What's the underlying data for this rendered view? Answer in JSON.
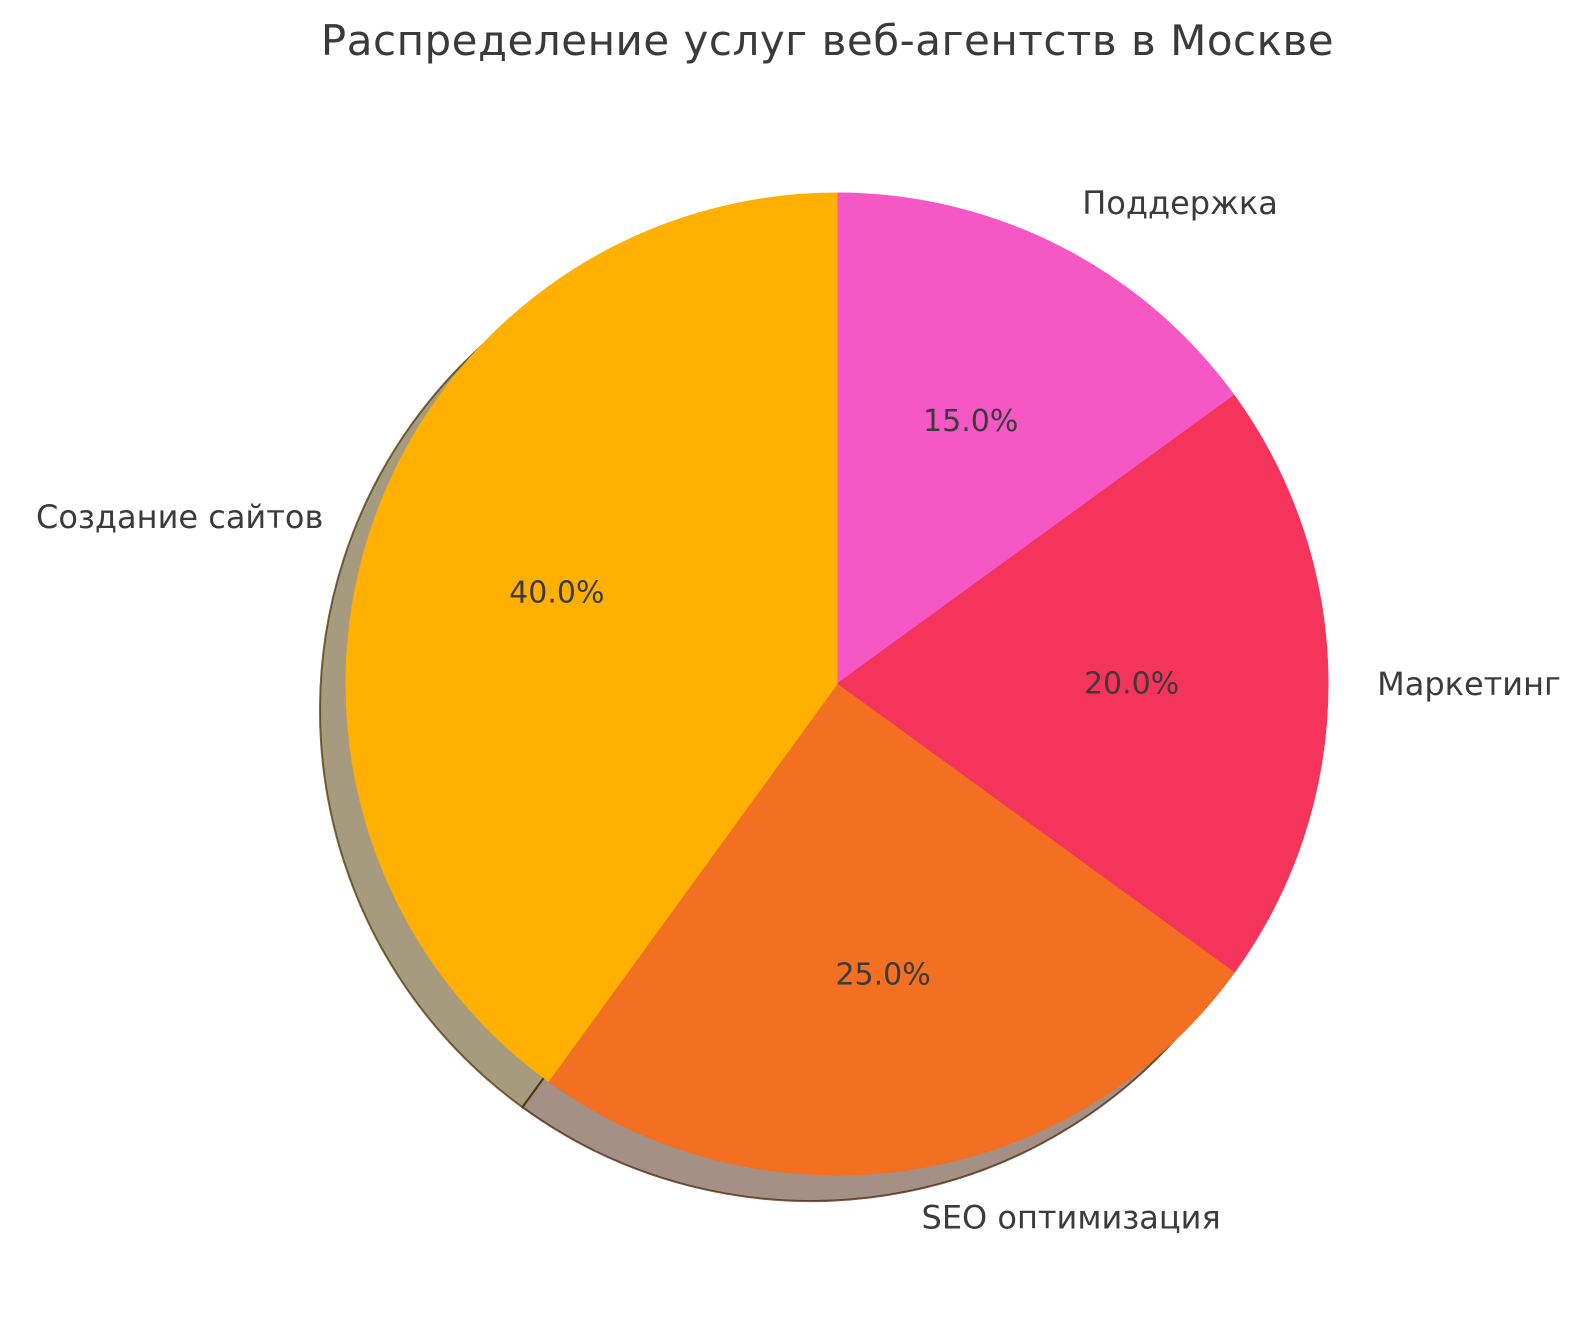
{
  "chart_data": {
    "type": "pie",
    "title": "Распределение услуг веб-агентств в Москве",
    "start_angle_deg": 90,
    "direction": "clockwise",
    "shadow": true,
    "legend": "none",
    "background": "#ffffff",
    "text_color": "#3b3b3b",
    "slices": [
      {
        "id": "support",
        "label": "Поддержка",
        "value": 15.0,
        "pct_label": "15.0%",
        "color": "#F558C5"
      },
      {
        "id": "marketing",
        "label": "Маркетинг",
        "value": 20.0,
        "pct_label": "20.0%",
        "color": "#F4345B"
      },
      {
        "id": "seo-optimization",
        "label": "SEO оптимизация",
        "value": 25.0,
        "pct_label": "25.0%",
        "color": "#F36F21"
      },
      {
        "id": "website-creation",
        "label": "Создание сайтов",
        "value": 40.0,
        "pct_label": "40.0%",
        "color": "#FFB000"
      }
    ]
  }
}
